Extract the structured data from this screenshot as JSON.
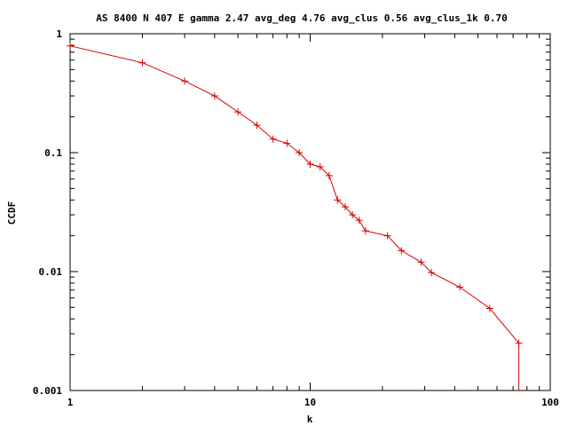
{
  "chart_data": {
    "type": "line",
    "title": "AS 8400 N 407 E gamma 2.47 avg_deg 4.76 avg_clus 0.56 avg_clus_1k 0.70",
    "xlabel": "k",
    "ylabel": "CCDF",
    "xscale": "log",
    "yscale": "log",
    "xlim": [
      1,
      100
    ],
    "ylim": [
      0.001,
      1
    ],
    "xticks": [
      {
        "value": 1,
        "label": "1"
      },
      {
        "value": 10,
        "label": "10"
      },
      {
        "value": 100,
        "label": "100"
      }
    ],
    "yticks": [
      {
        "value": 1,
        "label": "1"
      },
      {
        "value": 0.1,
        "label": "0.1"
      },
      {
        "value": 0.01,
        "label": "0.01"
      },
      {
        "value": 0.001,
        "label": "0.001"
      }
    ],
    "grid": false,
    "legend": "none",
    "color": "#d40000",
    "series": [
      {
        "x": [
          1,
          2,
          3,
          4,
          5,
          6,
          7,
          8,
          9,
          10,
          11,
          12,
          13,
          14,
          15,
          16,
          17,
          21,
          24,
          29,
          32,
          42,
          56,
          74,
          74
        ],
        "y": [
          0.79,
          0.57,
          0.4,
          0.3,
          0.22,
          0.17,
          0.13,
          0.12,
          0.1,
          0.08,
          0.076,
          0.064,
          0.04,
          0.035,
          0.03,
          0.027,
          0.022,
          0.02,
          0.015,
          0.012,
          0.0098,
          0.0074,
          0.0049,
          0.0025,
          0.001
        ]
      }
    ]
  }
}
